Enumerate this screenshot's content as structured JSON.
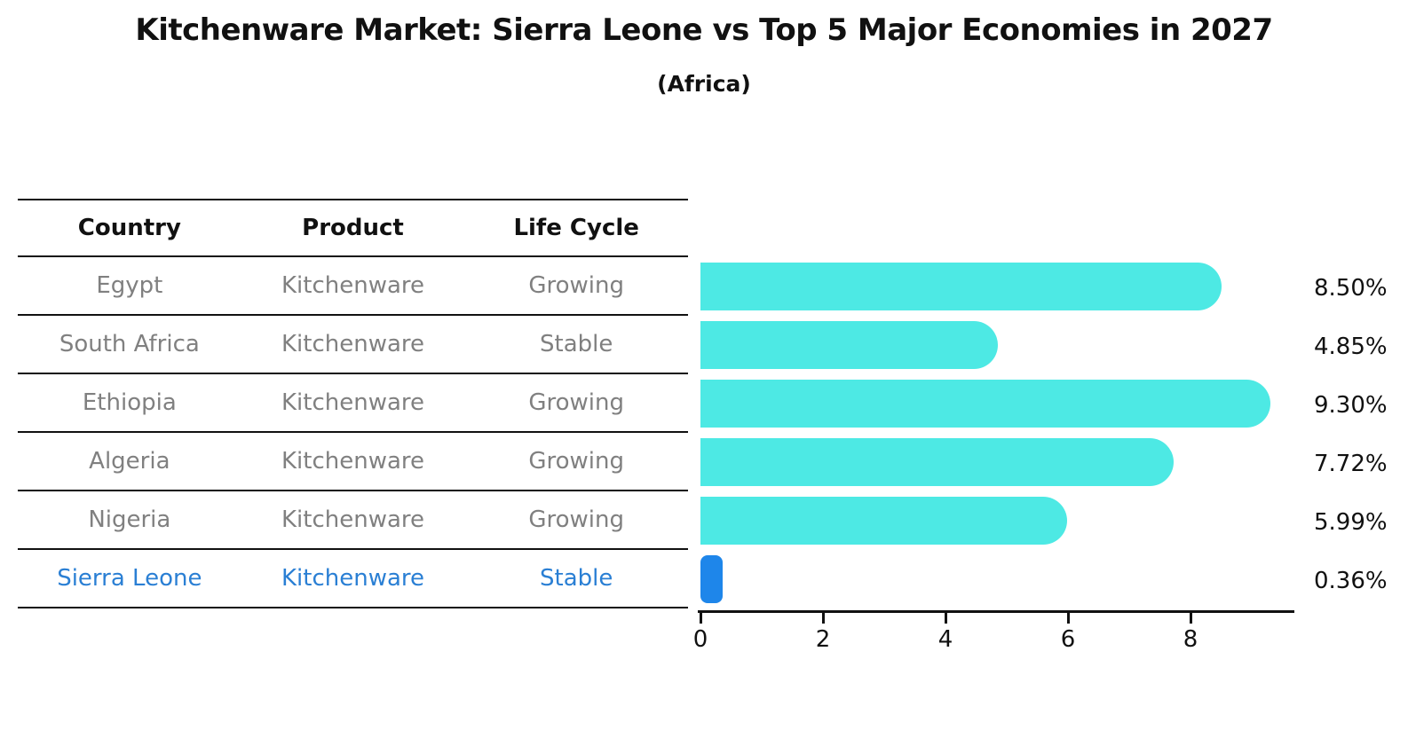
{
  "title": "Kitchenware Market: Sierra Leone vs Top 5 Major Economies in 2027",
  "subtitle": "(Africa)",
  "table": {
    "headers": [
      "Country",
      "Product",
      "Life Cycle"
    ],
    "rows": [
      {
        "country": "Egypt",
        "product": "Kitchenware",
        "life_cycle": "Growing"
      },
      {
        "country": "South Africa",
        "product": "Kitchenware",
        "life_cycle": "Stable"
      },
      {
        "country": "Ethiopia",
        "product": "Kitchenware",
        "life_cycle": "Growing"
      },
      {
        "country": "Algeria",
        "product": "Kitchenware",
        "life_cycle": "Growing"
      },
      {
        "country": "Nigeria",
        "product": "Kitchenware",
        "life_cycle": "Growing"
      },
      {
        "country": "Sierra Leone",
        "product": "Kitchenware",
        "life_cycle": "Stable"
      }
    ],
    "highlight_row_index": 5
  },
  "chart_data": {
    "type": "bar",
    "orientation": "horizontal",
    "title": "Kitchenware Market: Sierra Leone vs Top 5 Major Economies in 2027",
    "subtitle": "(Africa)",
    "categories": [
      "Egypt",
      "South Africa",
      "Ethiopia",
      "Algeria",
      "Nigeria",
      "Sierra Leone"
    ],
    "values": [
      8.5,
      4.85,
      9.3,
      7.72,
      5.99,
      0.36
    ],
    "value_labels": [
      "8.50%",
      "4.85%",
      "9.30%",
      "7.72%",
      "5.99%",
      "0.36%"
    ],
    "x_ticks": [
      0,
      2,
      4,
      6,
      8
    ],
    "xlim": [
      0,
      9.65
    ],
    "grid": false,
    "legend": false,
    "highlight_index": 5
  },
  "colors": {
    "bar_cyan": "#4de9e4",
    "bar_highlight_blue": "#1e86ea",
    "highlight_text_blue": "#2a7fd4",
    "table_text_gray": "#808080",
    "heading_black": "#111111"
  }
}
